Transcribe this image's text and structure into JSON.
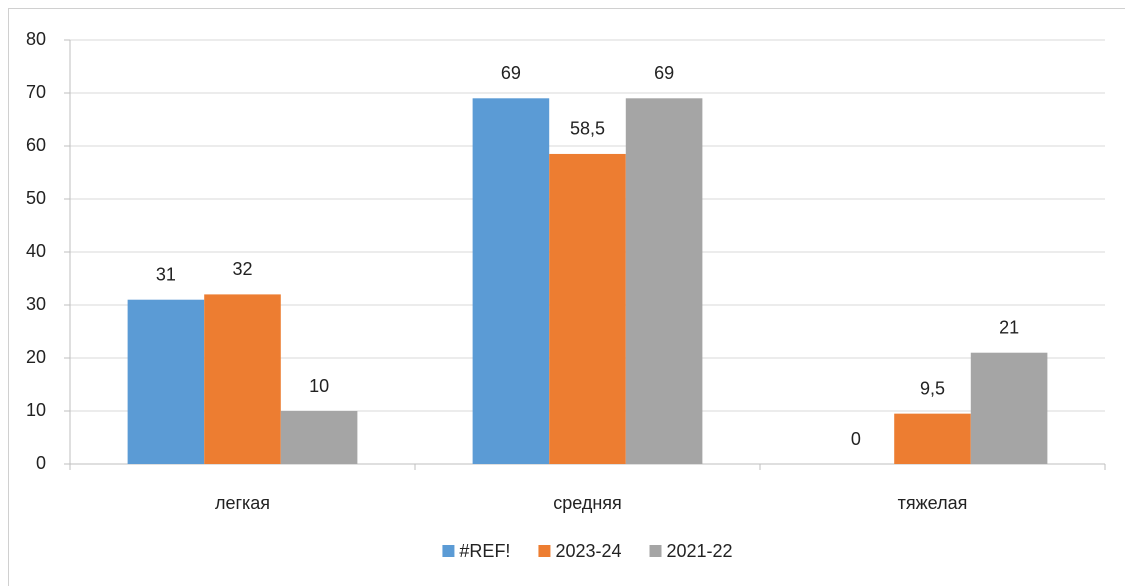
{
  "chart_data": {
    "type": "bar",
    "categories": [
      "легкая",
      "средняя",
      "тяжелая"
    ],
    "series": [
      {
        "name": "#REF!",
        "color": "#5b9bd5",
        "values": [
          31,
          69,
          0
        ],
        "value_labels": [
          "31",
          "69",
          "0"
        ]
      },
      {
        "name": "2023-24",
        "color": "#ed7d31",
        "values": [
          32,
          58.5,
          9.5
        ],
        "value_labels": [
          "32",
          "58,5",
          "9,5"
        ]
      },
      {
        "name": "2021-22",
        "color": "#a5a5a5",
        "values": [
          10,
          69,
          21
        ],
        "value_labels": [
          "10",
          "69",
          "21"
        ]
      }
    ],
    "ylim": [
      0,
      80
    ],
    "yticks": [
      0,
      10,
      20,
      30,
      40,
      50,
      60,
      70,
      80
    ],
    "grid": true,
    "legend": "bottom"
  }
}
